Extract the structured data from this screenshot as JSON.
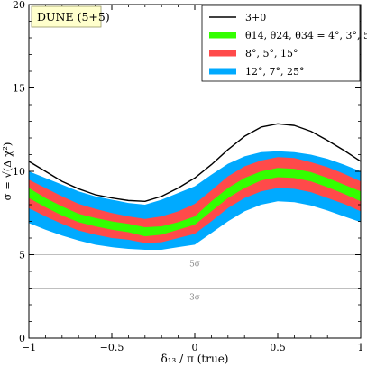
{
  "chart_data": {
    "type": "line",
    "title": "DUNE (5+5)",
    "xlabel": "δ₁₃ / π (true)",
    "ylabel": "σ = √(Δ χ²)",
    "xlim": [
      -1,
      1
    ],
    "ylim": [
      0,
      20
    ],
    "xticks": [
      -1,
      -0.5,
      0,
      0.5,
      1
    ],
    "xtick_labels": [
      "−1",
      "−0.5",
      "0",
      "0.5",
      "1"
    ],
    "yticks": [
      0,
      5,
      10,
      15,
      20
    ],
    "ytick_labels": [
      "0",
      "5",
      "10",
      "15",
      "20"
    ],
    "grid": false,
    "legend_position": "top-right",
    "reference_lines": [
      {
        "y": 5,
        "label": "5σ",
        "color": "#aaaaaa"
      },
      {
        "y": 3,
        "label": "3σ",
        "color": "#aaaaaa"
      }
    ],
    "x": [
      -1,
      -0.9,
      -0.8,
      -0.7,
      -0.6,
      -0.5,
      -0.4,
      -0.3,
      -0.2,
      -0.1,
      0,
      0.1,
      0.2,
      0.3,
      0.4,
      0.5,
      0.6,
      0.7,
      0.8,
      0.9,
      1
    ],
    "series": [
      {
        "name": "3+0",
        "style": "line",
        "color": "#000000",
        "values": [
          10.6,
          10.0,
          9.4,
          8.95,
          8.6,
          8.4,
          8.25,
          8.2,
          8.5,
          9.0,
          9.6,
          10.4,
          11.3,
          12.1,
          12.65,
          12.85,
          12.75,
          12.4,
          11.85,
          11.25,
          10.6
        ]
      },
      {
        "name": "θ14, θ24, θ34 = 4°, 3°, 5°",
        "style": "band",
        "color": "#33ff00",
        "upper": [
          9.0,
          8.4,
          7.9,
          7.45,
          7.2,
          7.0,
          6.85,
          6.65,
          6.7,
          6.95,
          7.3,
          8.2,
          9.0,
          9.6,
          10.0,
          10.2,
          10.15,
          9.95,
          9.6,
          9.2,
          8.8
        ],
        "lower": [
          8.4,
          7.85,
          7.35,
          6.95,
          6.7,
          6.5,
          6.35,
          6.1,
          6.2,
          6.5,
          6.8,
          7.6,
          8.4,
          9.0,
          9.45,
          9.65,
          9.6,
          9.4,
          9.05,
          8.65,
          8.2
        ]
      },
      {
        "name": "8°, 5°, 15°",
        "style": "band",
        "color": "#ff4a4a",
        "upper": [
          9.5,
          9.0,
          8.5,
          8.05,
          7.75,
          7.5,
          7.3,
          7.15,
          7.3,
          7.6,
          8.05,
          8.85,
          9.7,
          10.3,
          10.65,
          10.85,
          10.8,
          10.55,
          10.25,
          9.85,
          9.4
        ],
        "lower": [
          7.8,
          7.3,
          6.85,
          6.45,
          6.2,
          6.0,
          5.9,
          5.7,
          5.75,
          6.0,
          6.25,
          7.0,
          7.8,
          8.4,
          8.8,
          9.0,
          8.95,
          8.75,
          8.4,
          8.05,
          7.6
        ]
      },
      {
        "name": "12°, 7°, 25°",
        "style": "band",
        "color": "#00aaff",
        "upper": [
          10.0,
          9.6,
          9.2,
          8.8,
          8.5,
          8.3,
          8.1,
          8.0,
          8.3,
          8.7,
          9.1,
          9.8,
          10.45,
          10.9,
          11.15,
          11.2,
          11.15,
          11.0,
          10.75,
          10.4,
          10.0
        ],
        "lower": [
          6.9,
          6.5,
          6.15,
          5.85,
          5.6,
          5.45,
          5.35,
          5.3,
          5.3,
          5.45,
          5.6,
          6.3,
          7.0,
          7.6,
          8.0,
          8.2,
          8.15,
          7.95,
          7.65,
          7.3,
          6.95
        ]
      }
    ]
  }
}
